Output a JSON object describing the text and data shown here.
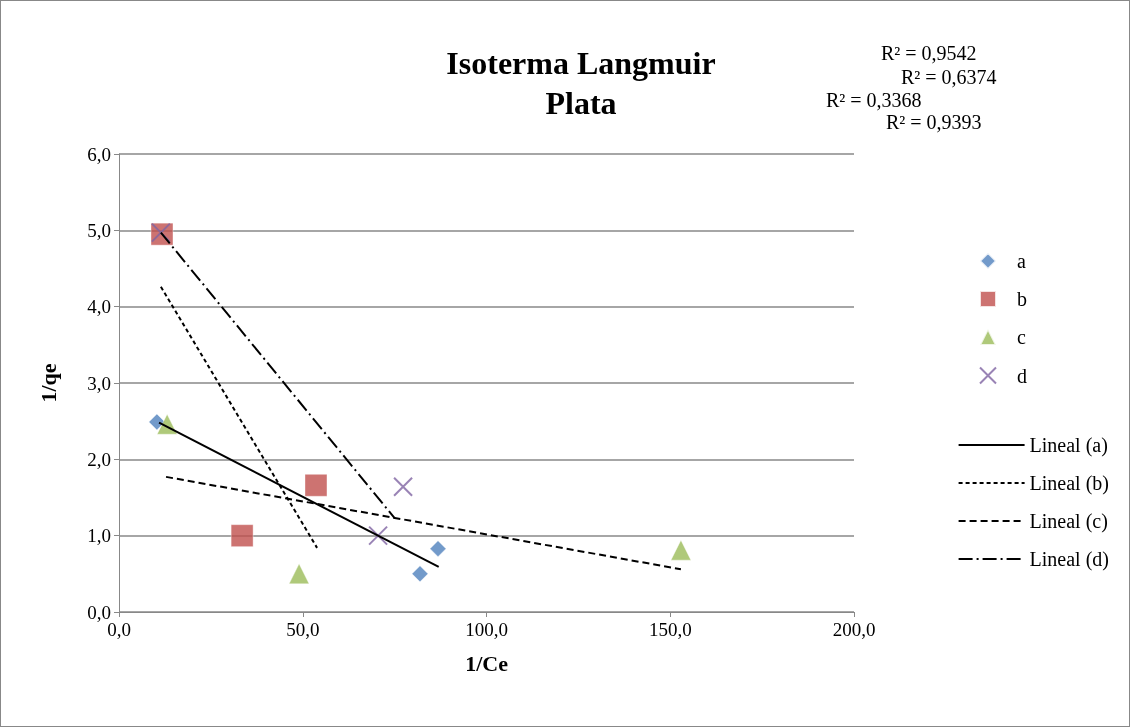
{
  "chart_data": {
    "type": "scatter",
    "title": "Isoterma Langmuir\nPlata",
    "xlabel": "1/Ce",
    "ylabel": "1/qe",
    "xlim": [
      0,
      200
    ],
    "xticks": [
      {
        "value": 0,
        "label": "0,0"
      },
      {
        "value": 50,
        "label": "50,0"
      },
      {
        "value": 100,
        "label": "100,0"
      },
      {
        "value": 150,
        "label": "150,0"
      },
      {
        "value": 200,
        "label": "200,0"
      }
    ],
    "ylim": [
      0,
      6
    ],
    "yticks": [
      {
        "value": 0,
        "label": "0,0"
      },
      {
        "value": 1,
        "label": "1,0"
      },
      {
        "value": 2,
        "label": "2,0"
      },
      {
        "value": 3,
        "label": "3,0"
      },
      {
        "value": 4,
        "label": "4,0"
      },
      {
        "value": 5,
        "label": "5,0"
      },
      {
        "value": 6,
        "label": "6,0"
      }
    ],
    "grid": "y",
    "legend": "right",
    "annotations": [
      "R² = 0,9542",
      "R² = 0,6374",
      "R² = 0,3368",
      "R² = 0,9393"
    ],
    "series": [
      {
        "name": "a",
        "marker": "diamond",
        "color": "#4f81bd",
        "x": [
          10.3,
          81.9,
          86.8
        ],
        "values": [
          2.49,
          0.5,
          0.83
        ]
      },
      {
        "name": "b",
        "marker": "square",
        "color": "#c0504d",
        "x": [
          11.7,
          33.5,
          53.6
        ],
        "values": [
          4.95,
          1.0,
          1.66
        ]
      },
      {
        "name": "c",
        "marker": "triangle",
        "color": "#9bbb59",
        "x": [
          13.1,
          49.0,
          152.9
        ],
        "values": [
          2.46,
          0.5,
          0.81
        ]
      },
      {
        "name": "d",
        "marker": "cross",
        "color": "#8064a2",
        "x": [
          11.4,
          70.5,
          77.3
        ],
        "values": [
          4.97,
          1.0,
          1.64
        ]
      },
      {
        "name": "Lineal (a)",
        "type": "line",
        "marker": "none",
        "line_style": "solid",
        "color": "#000000",
        "x": [
          10.9,
          87.0
        ],
        "values": [
          2.48,
          0.59
        ]
      },
      {
        "name": "Lineal (b)",
        "type": "line",
        "marker": "none",
        "line_style": "dotted",
        "color": "#000000",
        "x": [
          11.4,
          53.9
        ],
        "values": [
          4.26,
          0.84
        ]
      },
      {
        "name": "Lineal (c)",
        "type": "line",
        "marker": "none",
        "line_style": "dashed",
        "color": "#000000",
        "x": [
          12.8,
          152.9
        ],
        "values": [
          1.77,
          0.56
        ]
      },
      {
        "name": "Lineal (d)",
        "type": "line",
        "marker": "none",
        "line_style": "dashdot",
        "color": "#000000",
        "x": [
          11.4,
          75.0
        ],
        "values": [
          4.97,
          1.23
        ]
      }
    ]
  }
}
